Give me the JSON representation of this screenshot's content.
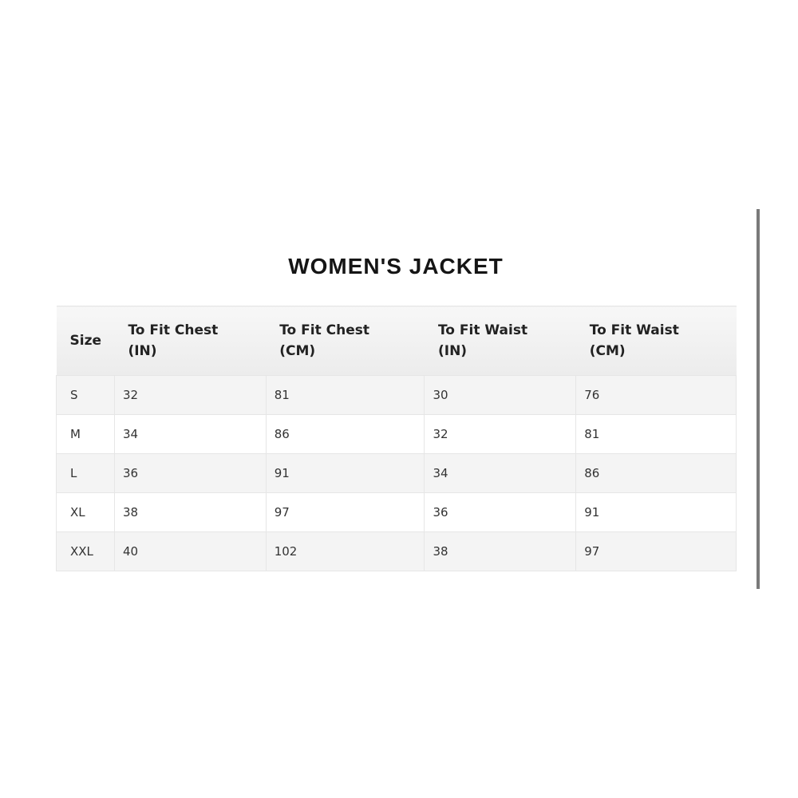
{
  "title": "WOMEN'S JACKET",
  "table": {
    "headers": [
      {
        "line1": "Size",
        "line2": ""
      },
      {
        "line1": "To Fit Chest",
        "line2": "(IN)"
      },
      {
        "line1": "To Fit Chest",
        "line2": "(CM)"
      },
      {
        "line1": "To Fit Waist",
        "line2": "(IN)"
      },
      {
        "line1": "To Fit Waist",
        "line2": "(CM)"
      }
    ],
    "rows": [
      [
        "S",
        "32",
        "81",
        "30",
        "76"
      ],
      [
        "M",
        "34",
        "86",
        "32",
        "81"
      ],
      [
        "L",
        "36",
        "91",
        "34",
        "86"
      ],
      [
        "XL",
        "38",
        "97",
        "36",
        "91"
      ],
      [
        "XXL",
        "40",
        "102",
        "38",
        "97"
      ]
    ]
  }
}
